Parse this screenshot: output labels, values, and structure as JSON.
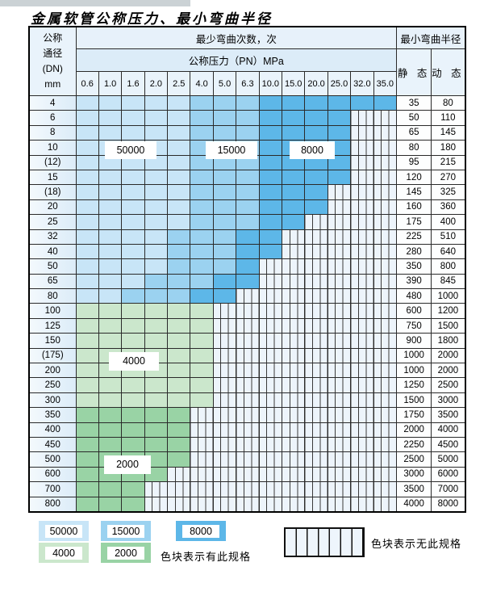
{
  "title": "金属软管公称压力、最小弯曲半径",
  "table": {
    "header": {
      "dn_lines": [
        "公称",
        "通径",
        "(DN)",
        "mm"
      ],
      "bend_cycles": "最少弯曲次数，次",
      "pressure": "公称压力（PN）MPa",
      "min_radius": "最小弯曲半径",
      "static_label": "静 态",
      "dynamic_label": "动 态",
      "pn_ticks": [
        "0.6",
        "1.0",
        "1.6",
        "2.0",
        "2.5",
        "4.0",
        "5.0",
        "6.3",
        "10.0",
        "15.0",
        "20.0",
        "25.0",
        "32.0",
        "35.0"
      ]
    },
    "zone_legend_note": "cells: b1=50000次, b2=15000次, b3=8000次, g1=4000次, g2=2000次, x=无此规格",
    "rows": [
      {
        "dn": "4",
        "cells": [
          "b1",
          "b1",
          "b1",
          "b1",
          "b1",
          "b2",
          "b2",
          "b2",
          "b3",
          "b3",
          "b3",
          "b3",
          "b3",
          "b3"
        ],
        "static": "35",
        "dynamic": "80"
      },
      {
        "dn": "6",
        "cells": [
          "b1",
          "b1",
          "b1",
          "b1",
          "b1",
          "b2",
          "b2",
          "b2",
          "b3",
          "b3",
          "b3",
          "b3",
          "x",
          "x"
        ],
        "static": "50",
        "dynamic": "110"
      },
      {
        "dn": "8",
        "cells": [
          "b1",
          "b1",
          "b1",
          "b1",
          "b1",
          "b2",
          "b2",
          "b2",
          "b3",
          "b3",
          "b3",
          "b3",
          "x",
          "x"
        ],
        "static": "65",
        "dynamic": "145"
      },
      {
        "dn": "10",
        "cells": [
          "b1",
          "b1",
          "b1",
          "b1",
          "b1",
          "b2",
          "b2",
          "b2",
          "b3",
          "b3",
          "b3",
          "b3",
          "x",
          "x"
        ],
        "static": "80",
        "dynamic": "180"
      },
      {
        "dn": "(12)",
        "cells": [
          "b1",
          "b1",
          "b1",
          "b1",
          "b1",
          "b2",
          "b2",
          "b2",
          "b3",
          "b3",
          "b3",
          "b3",
          "x",
          "x"
        ],
        "static": "95",
        "dynamic": "215"
      },
      {
        "dn": "15",
        "cells": [
          "b1",
          "b1",
          "b1",
          "b1",
          "b1",
          "b2",
          "b2",
          "b2",
          "b3",
          "b3",
          "b3",
          "b3",
          "x",
          "x"
        ],
        "static": "120",
        "dynamic": "270"
      },
      {
        "dn": "(18)",
        "cells": [
          "b1",
          "b1",
          "b1",
          "b1",
          "b1",
          "b2",
          "b2",
          "b2",
          "b3",
          "b3",
          "b3",
          "x",
          "x",
          "x"
        ],
        "static": "145",
        "dynamic": "325"
      },
      {
        "dn": "20",
        "cells": [
          "b1",
          "b1",
          "b1",
          "b1",
          "b1",
          "b2",
          "b2",
          "b2",
          "b3",
          "b3",
          "b3",
          "x",
          "x",
          "x"
        ],
        "static": "160",
        "dynamic": "360"
      },
      {
        "dn": "25",
        "cells": [
          "b1",
          "b1",
          "b1",
          "b1",
          "b1",
          "b2",
          "b2",
          "b2",
          "b3",
          "b3",
          "x",
          "x",
          "x",
          "x"
        ],
        "static": "175",
        "dynamic": "400"
      },
      {
        "dn": "32",
        "cells": [
          "b1",
          "b1",
          "b1",
          "b1",
          "b2",
          "b2",
          "b2",
          "b3",
          "b3",
          "x",
          "x",
          "x",
          "x",
          "x"
        ],
        "static": "225",
        "dynamic": "510"
      },
      {
        "dn": "40",
        "cells": [
          "b1",
          "b1",
          "b1",
          "b1",
          "b2",
          "b2",
          "b2",
          "b3",
          "b3",
          "x",
          "x",
          "x",
          "x",
          "x"
        ],
        "static": "280",
        "dynamic": "640"
      },
      {
        "dn": "50",
        "cells": [
          "b1",
          "b1",
          "b1",
          "b1",
          "b2",
          "b2",
          "b2",
          "b3",
          "x",
          "x",
          "x",
          "x",
          "x",
          "x"
        ],
        "static": "350",
        "dynamic": "800"
      },
      {
        "dn": "65",
        "cells": [
          "b1",
          "b1",
          "b1",
          "b2",
          "b2",
          "b2",
          "b3",
          "b3",
          "x",
          "x",
          "x",
          "x",
          "x",
          "x"
        ],
        "static": "390",
        "dynamic": "845"
      },
      {
        "dn": "80",
        "cells": [
          "b1",
          "b1",
          "b2",
          "b2",
          "b2",
          "b3",
          "b3",
          "x",
          "x",
          "x",
          "x",
          "x",
          "x",
          "x"
        ],
        "static": "480",
        "dynamic": "1000"
      },
      {
        "dn": "100",
        "cells": [
          "g1",
          "g1",
          "g1",
          "g1",
          "g1",
          "g1",
          "x",
          "x",
          "x",
          "x",
          "x",
          "x",
          "x",
          "x"
        ],
        "static": "600",
        "dynamic": "1200"
      },
      {
        "dn": "125",
        "cells": [
          "g1",
          "g1",
          "g1",
          "g1",
          "g1",
          "g1",
          "x",
          "x",
          "x",
          "x",
          "x",
          "x",
          "x",
          "x"
        ],
        "static": "750",
        "dynamic": "1500"
      },
      {
        "dn": "150",
        "cells": [
          "g1",
          "g1",
          "g1",
          "g1",
          "g1",
          "g1",
          "x",
          "x",
          "x",
          "x",
          "x",
          "x",
          "x",
          "x"
        ],
        "static": "900",
        "dynamic": "1800"
      },
      {
        "dn": "(175)",
        "cells": [
          "g1",
          "g1",
          "g1",
          "g1",
          "g1",
          "g1",
          "x",
          "x",
          "x",
          "x",
          "x",
          "x",
          "x",
          "x"
        ],
        "static": "1000",
        "dynamic": "2000"
      },
      {
        "dn": "200",
        "cells": [
          "g1",
          "g1",
          "g1",
          "g1",
          "g1",
          "g1",
          "x",
          "x",
          "x",
          "x",
          "x",
          "x",
          "x",
          "x"
        ],
        "static": "1000",
        "dynamic": "2000"
      },
      {
        "dn": "250",
        "cells": [
          "g1",
          "g1",
          "g1",
          "g1",
          "g1",
          "g1",
          "x",
          "x",
          "x",
          "x",
          "x",
          "x",
          "x",
          "x"
        ],
        "static": "1250",
        "dynamic": "2500"
      },
      {
        "dn": "300",
        "cells": [
          "g1",
          "g1",
          "g1",
          "g1",
          "g1",
          "g1",
          "x",
          "x",
          "x",
          "x",
          "x",
          "x",
          "x",
          "x"
        ],
        "static": "1500",
        "dynamic": "3000"
      },
      {
        "dn": "350",
        "cells": [
          "g2",
          "g2",
          "g2",
          "g2",
          "g2",
          "x",
          "x",
          "x",
          "x",
          "x",
          "x",
          "x",
          "x",
          "x"
        ],
        "static": "1750",
        "dynamic": "3500"
      },
      {
        "dn": "400",
        "cells": [
          "g2",
          "g2",
          "g2",
          "g2",
          "g2",
          "x",
          "x",
          "x",
          "x",
          "x",
          "x",
          "x",
          "x",
          "x"
        ],
        "static": "2000",
        "dynamic": "4000"
      },
      {
        "dn": "450",
        "cells": [
          "g2",
          "g2",
          "g2",
          "g2",
          "g2",
          "x",
          "x",
          "x",
          "x",
          "x",
          "x",
          "x",
          "x",
          "x"
        ],
        "static": "2250",
        "dynamic": "4500"
      },
      {
        "dn": "500",
        "cells": [
          "g2",
          "g2",
          "g2",
          "g2",
          "g2",
          "x",
          "x",
          "x",
          "x",
          "x",
          "x",
          "x",
          "x",
          "x"
        ],
        "static": "2500",
        "dynamic": "5000"
      },
      {
        "dn": "600",
        "cells": [
          "g2",
          "g2",
          "g2",
          "g2",
          "x",
          "x",
          "x",
          "x",
          "x",
          "x",
          "x",
          "x",
          "x",
          "x"
        ],
        "static": "3000",
        "dynamic": "6000"
      },
      {
        "dn": "700",
        "cells": [
          "g2",
          "g2",
          "g2",
          "x",
          "x",
          "x",
          "x",
          "x",
          "x",
          "x",
          "x",
          "x",
          "x",
          "x"
        ],
        "static": "3500",
        "dynamic": "7000"
      },
      {
        "dn": "800",
        "cells": [
          "g2",
          "g2",
          "g2",
          "x",
          "x",
          "x",
          "x",
          "x",
          "x",
          "x",
          "x",
          "x",
          "x",
          "x"
        ],
        "static": "4000",
        "dynamic": "8000"
      }
    ]
  },
  "overlays": {
    "l50000": "50000",
    "l15000": "15000",
    "l8000": "8000",
    "l4000": "4000",
    "l2000": "2000"
  },
  "legend": {
    "items": [
      {
        "label": "50000",
        "zone": "b1"
      },
      {
        "label": "15000",
        "zone": "b2"
      },
      {
        "label": "8000",
        "zone": "b3"
      },
      {
        "label": "4000",
        "zone": "g1"
      },
      {
        "label": "2000",
        "zone": "g2"
      }
    ],
    "has_spec_text": "色块表示有此规格",
    "no_spec_text": "色块表示无此规格"
  },
  "colors": {
    "zones": {
      "b1": "#c8e5f7",
      "b2": "#9bd2f0",
      "b3": "#5db7e8",
      "g1": "#cbe7cc",
      "g2": "#99d3a5"
    },
    "hatch_bg": "#edf4fb",
    "hatch_line": "#3a3a3a",
    "header_bg": "#e7f1fa",
    "border": "#2a2a2a"
  }
}
